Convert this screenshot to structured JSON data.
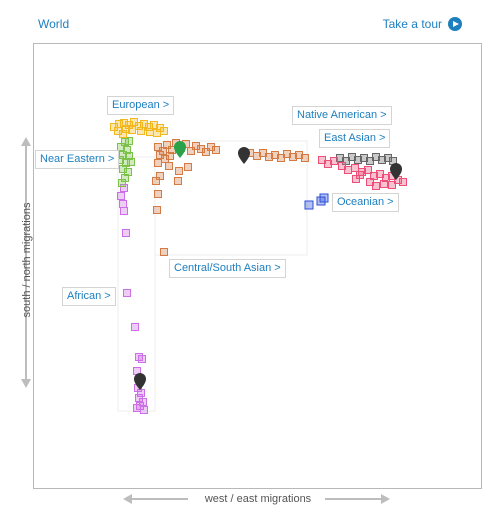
{
  "header": {
    "world_label": "World",
    "tour_label": "Take a tour",
    "tour_icon": "play-circle-icon"
  },
  "axes": {
    "x_label": "west / east migrations",
    "y_label": "south / north migrations"
  },
  "regions": {
    "european": "European >",
    "near_eastern": "Near Eastern >",
    "african": "African >",
    "central_south_asian": "Central/South Asian >",
    "native_american": "Native American >",
    "east_asian": "East Asian >",
    "oceanian": "Oceanian >"
  },
  "colors": {
    "link": "#1e7fbf",
    "african": "#cc6fe6",
    "near_eastern": "#7cc24a",
    "european": "#f2b81e",
    "central_south_asian": "#d47b45",
    "east_asian": "#ee4f78",
    "native_american": "#666666",
    "oceanian": "#2b4fd8",
    "highlight_marker": "#2aa24a",
    "marker": "#333333"
  }
}
